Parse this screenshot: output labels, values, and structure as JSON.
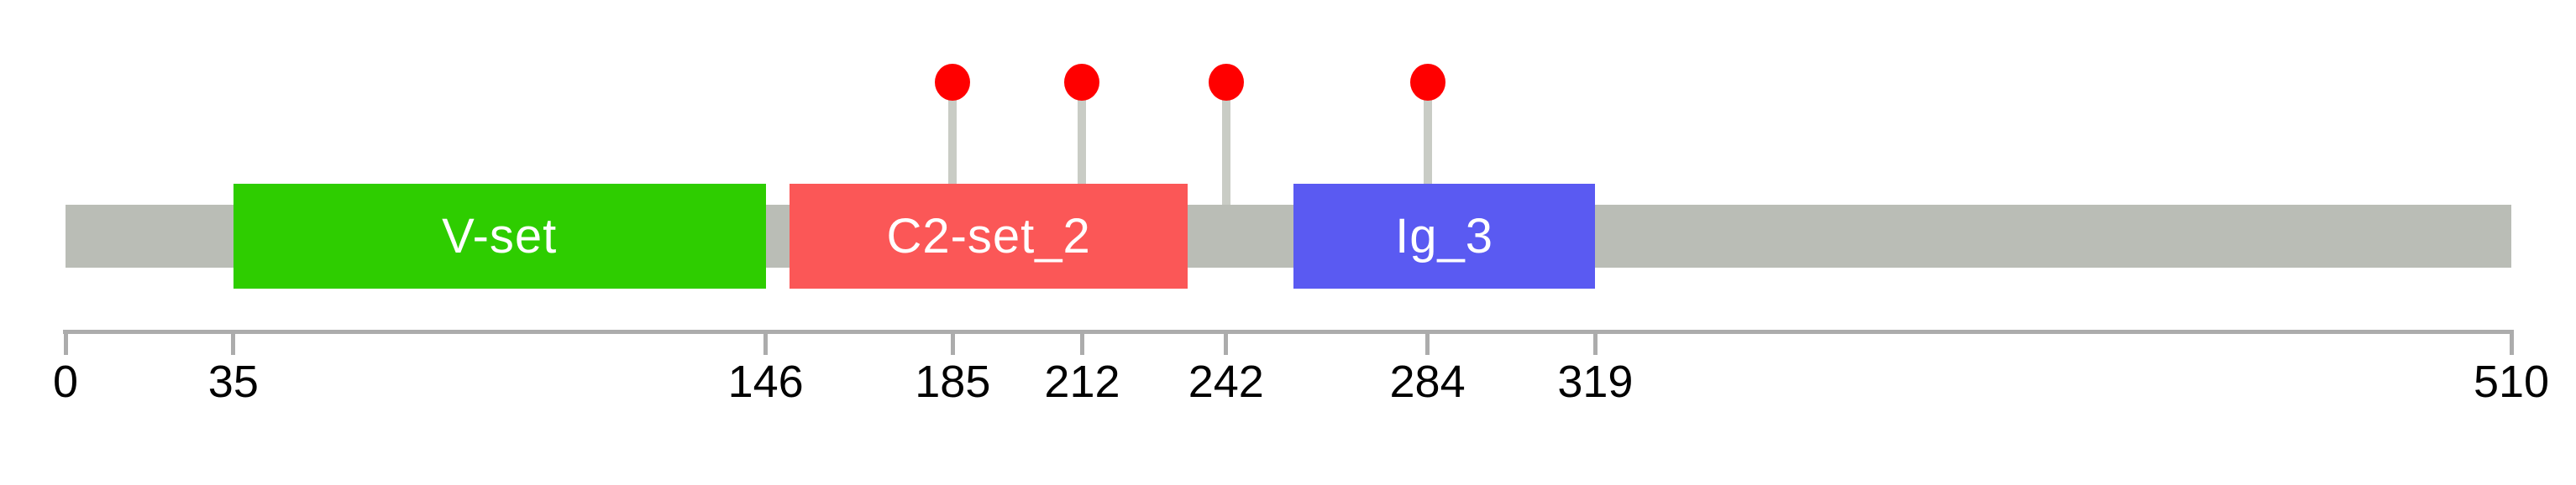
{
  "chart_data": {
    "type": "lollipop",
    "title": "",
    "xlabel": "",
    "legend": null,
    "grid": false,
    "xlim": [
      0,
      510
    ],
    "protein_length": 510,
    "axis_ticks": [
      0,
      35,
      146,
      185,
      212,
      242,
      284,
      319,
      510
    ],
    "backbone": {
      "start": 0,
      "end": 510,
      "color": "#babdb6"
    },
    "domains": [
      {
        "label": "V-set",
        "start": 35,
        "end": 146,
        "color": "#2ecd00"
      },
      {
        "label": "C2-set_2",
        "start": 151,
        "end": 234,
        "color": "#fb5757"
      },
      {
        "label": "Ig_3",
        "start": 256,
        "end": 319,
        "color": "#5a5af2"
      }
    ],
    "lollipops": [
      {
        "position": 185,
        "color": "#ff0000"
      },
      {
        "position": 212,
        "color": "#ff0000"
      },
      {
        "position": 242,
        "color": "#ff0000"
      },
      {
        "position": 284,
        "color": "#ff0000"
      }
    ],
    "styles": {
      "background": "#ffffff",
      "stem_color": "#c9ccc5",
      "axis_color": "#acacac",
      "tick_label_color": "#000000",
      "domain_label_color": "#ffffff"
    }
  }
}
